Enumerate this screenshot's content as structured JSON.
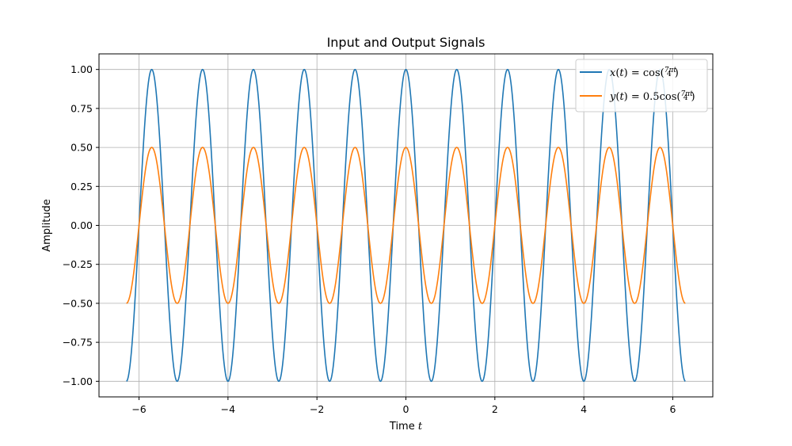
{
  "chart_data": {
    "type": "line",
    "title": "Input and Output Signals",
    "xlabel": "Time t",
    "xlabel_main": "Time ",
    "xlabel_var": "t",
    "ylabel": "Amplitude",
    "xlim": [
      -6.9,
      6.9
    ],
    "ylim": [
      -1.1,
      1.1
    ],
    "xticks": [
      -6,
      -4,
      -2,
      0,
      2,
      4,
      6
    ],
    "xtick_labels": [
      "−6",
      "−4",
      "−2",
      "0",
      "2",
      "4",
      "6"
    ],
    "yticks": [
      -1.0,
      -0.75,
      -0.5,
      -0.25,
      0.0,
      0.25,
      0.5,
      0.75,
      1.0
    ],
    "ytick_labels": [
      "−1.00",
      "−0.75",
      "−0.50",
      "−0.25",
      "0.00",
      "0.25",
      "0.50",
      "0.75",
      "1.00"
    ],
    "grid": true,
    "legend_position": "top-right",
    "x_range": [
      -6.2832,
      6.2832
    ],
    "angular_frequency": "7π/4",
    "series": [
      {
        "name": "x(t) = cos(7πt/4)",
        "amplitude": 1.0,
        "color": "#1f77b4",
        "legend": {
          "lhs": "x",
          "var": "t",
          "rhs_amp": "",
          "func": "cos",
          "num": "7πt",
          "den": "4"
        }
      },
      {
        "name": "y(t) = 0.5cos(7πt/4)",
        "amplitude": 0.5,
        "color": "#ff7f0e",
        "legend": {
          "lhs": "y",
          "var": "t",
          "rhs_amp": "0.5",
          "func": "cos",
          "num": "7πt",
          "den": "4"
        }
      }
    ]
  }
}
